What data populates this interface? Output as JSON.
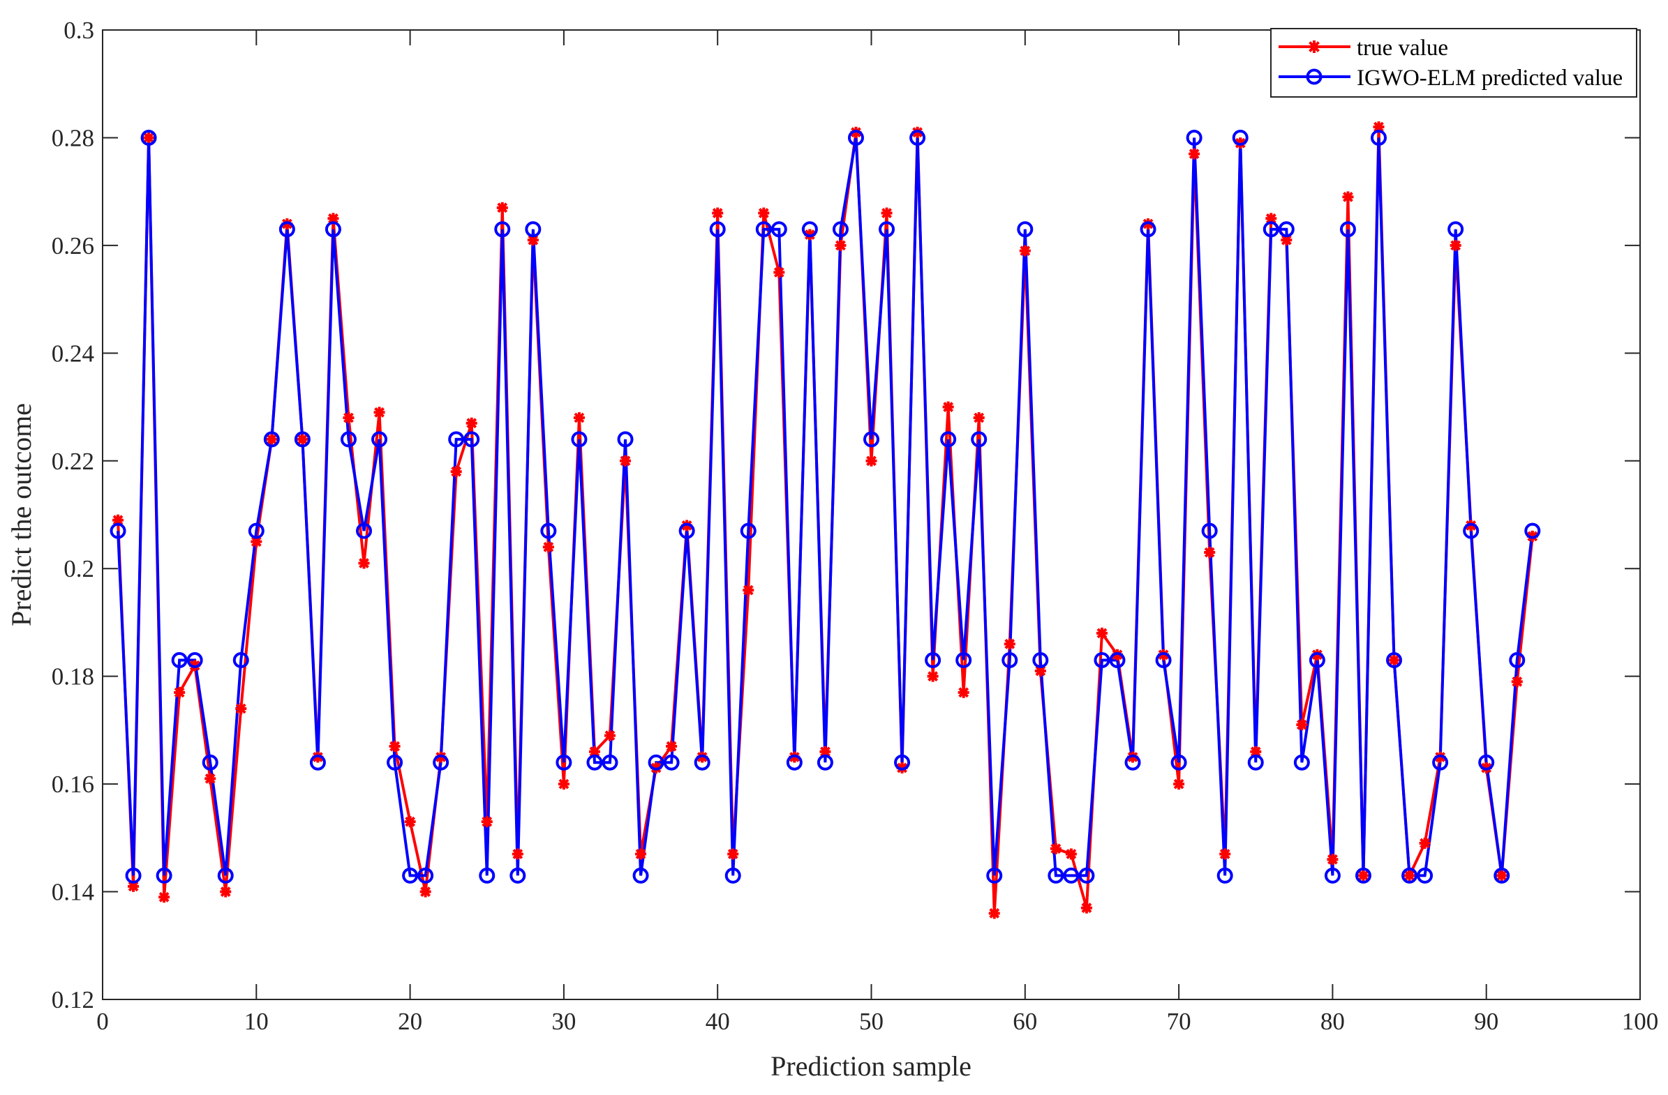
{
  "chart_data": {
    "type": "line",
    "title": "",
    "xlabel": "Prediction sample",
    "ylabel": "Predict the outcome",
    "xlim": [
      0,
      100
    ],
    "ylim": [
      0.12,
      0.3
    ],
    "xticks": [
      0,
      10,
      20,
      30,
      40,
      50,
      60,
      70,
      80,
      90,
      100
    ],
    "yticks": [
      0.12,
      0.14,
      0.16,
      0.18,
      0.2,
      0.22,
      0.24,
      0.26,
      0.28,
      0.3
    ],
    "xtick_labels": [
      "0",
      "10",
      "20",
      "30",
      "40",
      "50",
      "60",
      "70",
      "80",
      "90",
      "100"
    ],
    "ytick_labels": [
      "0.12",
      "0.14",
      "0.16",
      "0.18",
      "0.2",
      "0.22",
      "0.24",
      "0.26",
      "0.28",
      "0.3"
    ],
    "grid": false,
    "legend_position": "top-right",
    "x": [
      1,
      2,
      3,
      4,
      5,
      6,
      7,
      8,
      9,
      10,
      11,
      12,
      13,
      14,
      15,
      16,
      17,
      18,
      19,
      20,
      21,
      22,
      23,
      24,
      25,
      26,
      27,
      28,
      29,
      30,
      31,
      32,
      33,
      34,
      35,
      36,
      37,
      38,
      39,
      40,
      41,
      42,
      43,
      44,
      45,
      46,
      47,
      48,
      49,
      50,
      51,
      52,
      53,
      54,
      55,
      56,
      57,
      58,
      59,
      60,
      61,
      62,
      63,
      64,
      65,
      66,
      67,
      68,
      69,
      70,
      71,
      72,
      73,
      74,
      75,
      76,
      77,
      78,
      79,
      80,
      81,
      82,
      83,
      84,
      85,
      86,
      87,
      88,
      89,
      90,
      91,
      92,
      93
    ],
    "series": [
      {
        "name": "true value",
        "color": "#ff0000",
        "marker": "asterisk",
        "values": [
          0.209,
          0.141,
          0.28,
          0.139,
          0.177,
          0.182,
          0.161,
          0.14,
          0.174,
          0.205,
          0.224,
          0.264,
          0.224,
          0.165,
          0.265,
          0.228,
          0.201,
          0.229,
          0.167,
          0.153,
          0.14,
          0.165,
          0.218,
          0.227,
          0.153,
          0.267,
          0.147,
          0.261,
          0.204,
          0.16,
          0.228,
          0.166,
          0.169,
          0.22,
          0.147,
          0.163,
          0.167,
          0.208,
          0.165,
          0.266,
          0.147,
          0.196,
          0.266,
          0.255,
          0.165,
          0.262,
          0.166,
          0.26,
          0.281,
          0.22,
          0.266,
          0.163,
          0.281,
          0.18,
          0.23,
          0.177,
          0.228,
          0.136,
          0.186,
          0.259,
          0.181,
          0.148,
          0.147,
          0.137,
          0.188,
          0.184,
          0.165,
          0.264,
          0.184,
          0.16,
          0.277,
          0.203,
          0.147,
          0.279,
          0.166,
          0.265,
          0.261,
          0.171,
          0.184,
          0.146,
          0.269,
          0.143,
          0.282,
          0.183,
          0.143,
          0.149,
          0.165,
          0.26,
          0.208,
          0.163,
          0.143,
          0.179,
          0.206
        ]
      },
      {
        "name": "IGWO-ELM predicted value",
        "color": "#0000ff",
        "marker": "circle",
        "values": [
          0.207,
          0.143,
          0.28,
          0.143,
          0.183,
          0.183,
          0.164,
          0.143,
          0.183,
          0.207,
          0.224,
          0.263,
          0.224,
          0.164,
          0.263,
          0.224,
          0.207,
          0.224,
          0.164,
          0.143,
          0.143,
          0.164,
          0.224,
          0.224,
          0.143,
          0.263,
          0.143,
          0.263,
          0.207,
          0.164,
          0.224,
          0.164,
          0.164,
          0.224,
          0.143,
          0.164,
          0.164,
          0.207,
          0.164,
          0.263,
          0.143,
          0.207,
          0.263,
          0.263,
          0.164,
          0.263,
          0.164,
          0.263,
          0.28,
          0.224,
          0.263,
          0.164,
          0.28,
          0.183,
          0.224,
          0.183,
          0.224,
          0.143,
          0.183,
          0.263,
          0.183,
          0.143,
          0.143,
          0.143,
          0.183,
          0.183,
          0.164,
          0.263,
          0.183,
          0.164,
          0.28,
          0.207,
          0.143,
          0.28,
          0.164,
          0.263,
          0.263,
          0.164,
          0.183,
          0.143,
          0.263,
          0.143,
          0.28,
          0.183,
          0.143,
          0.143,
          0.164,
          0.263,
          0.207,
          0.164,
          0.143,
          0.183,
          0.207
        ]
      }
    ]
  }
}
